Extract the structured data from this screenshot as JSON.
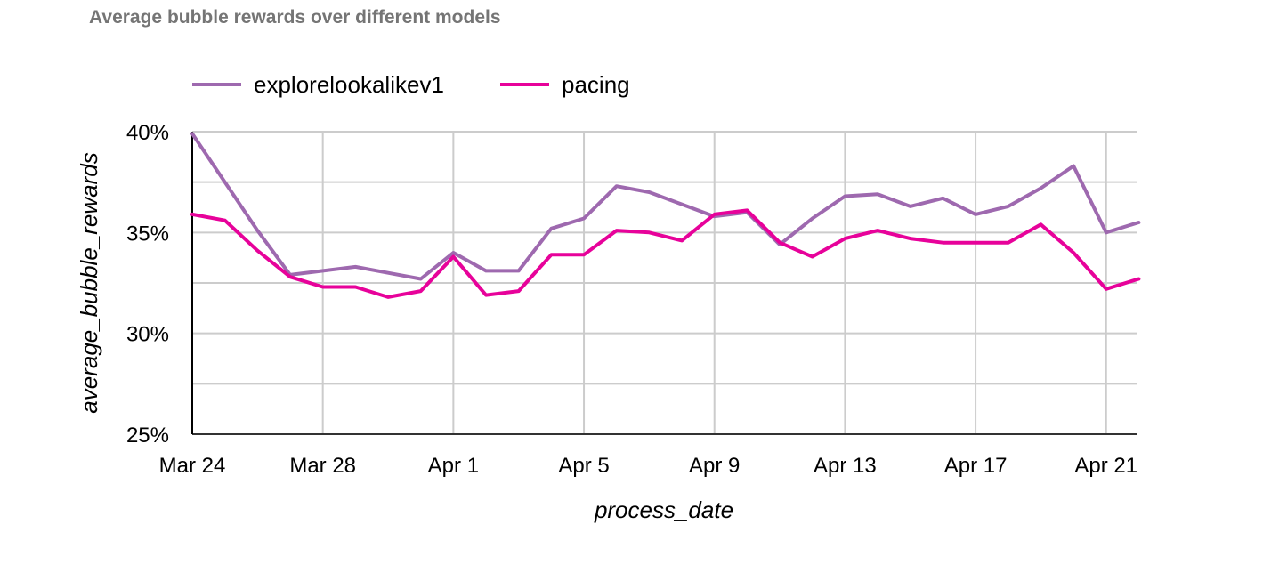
{
  "chart_data": {
    "type": "line",
    "title": "Average bubble rewards over different models",
    "xlabel": "process_date",
    "ylabel": "average_bubble_rewards",
    "y_tick_labels": [
      "25%",
      "30%",
      "35%",
      "40%"
    ],
    "y_ticks": [
      25,
      30,
      35,
      40
    ],
    "ylim": [
      25,
      40
    ],
    "y_unit": "percent",
    "x_tick_labels": [
      "Mar 24",
      "Mar 28",
      "Apr 1",
      "Apr 5",
      "Apr 9",
      "Apr 13",
      "Apr 17",
      "Apr 21"
    ],
    "x_tick_dates": [
      "Mar 24",
      "Mar 28",
      "Apr 1",
      "Apr 5",
      "Apr 9",
      "Apr 13",
      "Apr 17",
      "Apr 21"
    ],
    "x": [
      "Mar 24",
      "Mar 25",
      "Mar 26",
      "Mar 27",
      "Mar 28",
      "Mar 29",
      "Mar 30",
      "Mar 31",
      "Apr 1",
      "Apr 2",
      "Apr 3",
      "Apr 4",
      "Apr 5",
      "Apr 6",
      "Apr 7",
      "Apr 8",
      "Apr 9",
      "Apr 10",
      "Apr 11",
      "Apr 12",
      "Apr 13",
      "Apr 14",
      "Apr 15",
      "Apr 16",
      "Apr 17",
      "Apr 18",
      "Apr 19",
      "Apr 20",
      "Apr 21",
      "Apr 22"
    ],
    "series": [
      {
        "name": "explorelookalikev1",
        "color": "#9e69af",
        "values": [
          39.9,
          37.5,
          35.1,
          32.9,
          33.1,
          33.3,
          33.0,
          32.7,
          34.0,
          33.1,
          33.1,
          35.2,
          35.7,
          37.3,
          37.0,
          36.4,
          35.8,
          36.0,
          34.4,
          35.7,
          36.8,
          36.9,
          36.3,
          36.7,
          35.9,
          36.3,
          37.2,
          38.3,
          35.0,
          35.5
        ]
      },
      {
        "name": "pacing",
        "color": "#e7029a",
        "values": [
          35.9,
          35.6,
          34.1,
          32.8,
          32.3,
          32.3,
          31.8,
          32.1,
          33.8,
          31.9,
          32.1,
          33.9,
          33.9,
          35.1,
          35.0,
          34.6,
          35.9,
          36.1,
          34.5,
          33.8,
          34.7,
          35.1,
          34.7,
          34.5,
          34.5,
          34.5,
          35.4,
          34.0,
          32.2,
          32.7
        ]
      }
    ],
    "grid": true,
    "legend_position": "top-left"
  }
}
